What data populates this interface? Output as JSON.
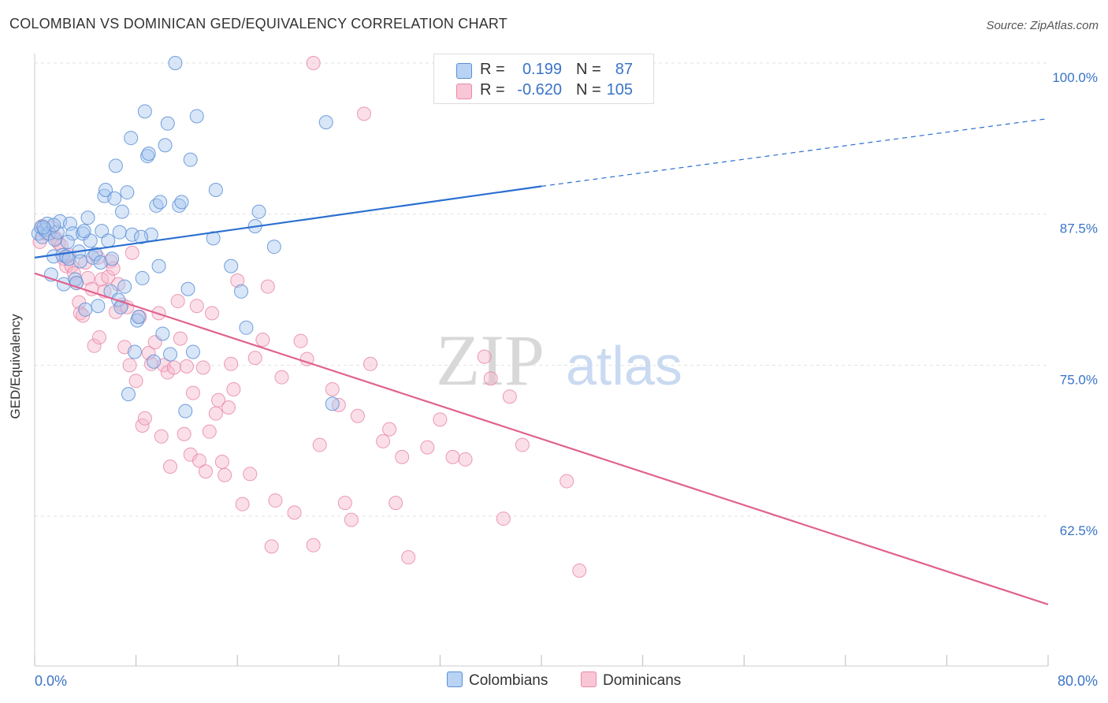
{
  "title": "COLOMBIAN VS DOMINICAN GED/EQUIVALENCY CORRELATION CHART",
  "source": "Source: ZipAtlas.com",
  "watermark": {
    "zip": "ZIP",
    "atlas": "atlas"
  },
  "legend": {
    "series1": {
      "r_label": "R =",
      "r_value": "0.199",
      "n_label": "N =",
      "n_value": "87"
    },
    "series2": {
      "r_label": "R =",
      "r_value": "-0.620",
      "n_label": "N =",
      "n_value": "105"
    }
  },
  "bottom_legend": {
    "series1": "Colombians",
    "series2": "Dominicans"
  },
  "colors": {
    "blue_fill": "#a8c8f0",
    "blue_stroke": "#5b8fd6",
    "blue_line": "#2a6fd0",
    "pink_fill": "#f6b8cc",
    "pink_stroke": "#e78aa8",
    "pink_line": "#e0628f",
    "axis_text": "#3a74c7",
    "grid": "#e2e2e2"
  },
  "chart_data": {
    "type": "scatter",
    "title": "COLOMBIAN VS DOMINICAN GED/EQUIVALENCY CORRELATION CHART",
    "xlabel": "",
    "ylabel": "GED/Equivalency",
    "xlim": [
      0,
      80
    ],
    "ylim": [
      50,
      102
    ],
    "x_tick_labels": [
      "0.0%",
      "80.0%"
    ],
    "y_ticks": [
      62.5,
      75.0,
      87.5,
      100.0
    ],
    "y_tick_labels": [
      "62.5%",
      "75.0%",
      "87.5%",
      "100.0%"
    ],
    "grid": true,
    "series": [
      {
        "name": "Colombians",
        "r": 0.199,
        "n": 87,
        "trend": {
          "x": [
            0,
            40
          ],
          "y": [
            83.9,
            89.8
          ],
          "dashed_to": [
            80,
            95.4
          ]
        },
        "points": [
          [
            0.3,
            85.9
          ],
          [
            0.5,
            86.4
          ],
          [
            0.6,
            85.6
          ],
          [
            0.8,
            86.2
          ],
          [
            1.0,
            86.7
          ],
          [
            1.1,
            85.9
          ],
          [
            1.3,
            82.5
          ],
          [
            1.5,
            84.0
          ],
          [
            1.6,
            85.4
          ],
          [
            1.8,
            86.0
          ],
          [
            2.0,
            86.9
          ],
          [
            2.2,
            84.1
          ],
          [
            2.3,
            81.7
          ],
          [
            2.5,
            84.0
          ],
          [
            2.7,
            83.8
          ],
          [
            2.8,
            86.7
          ],
          [
            3.0,
            85.9
          ],
          [
            3.2,
            82.1
          ],
          [
            3.3,
            81.8
          ],
          [
            3.5,
            84.4
          ],
          [
            3.6,
            83.6
          ],
          [
            3.8,
            85.9
          ],
          [
            4.0,
            79.6
          ],
          [
            4.2,
            87.2
          ],
          [
            4.4,
            85.3
          ],
          [
            4.6,
            83.9
          ],
          [
            4.8,
            84.2
          ],
          [
            5.0,
            79.9
          ],
          [
            5.2,
            83.5
          ],
          [
            5.3,
            86.1
          ],
          [
            5.5,
            89.0
          ],
          [
            5.6,
            89.5
          ],
          [
            5.8,
            85.3
          ],
          [
            6.0,
            81.1
          ],
          [
            6.1,
            83.8
          ],
          [
            6.3,
            88.8
          ],
          [
            6.4,
            91.5
          ],
          [
            6.6,
            80.4
          ],
          [
            6.8,
            79.8
          ],
          [
            6.9,
            87.7
          ],
          [
            7.1,
            81.5
          ],
          [
            7.3,
            89.3
          ],
          [
            7.4,
            72.6
          ],
          [
            7.6,
            93.8
          ],
          [
            7.7,
            85.8
          ],
          [
            7.9,
            76.1
          ],
          [
            8.1,
            78.7
          ],
          [
            8.2,
            79.0
          ],
          [
            8.5,
            82.2
          ],
          [
            8.7,
            96.0
          ],
          [
            8.9,
            92.3
          ],
          [
            9.0,
            92.5
          ],
          [
            9.2,
            85.8
          ],
          [
            9.4,
            75.3
          ],
          [
            9.6,
            88.2
          ],
          [
            9.8,
            83.2
          ],
          [
            9.9,
            88.5
          ],
          [
            10.1,
            77.6
          ],
          [
            10.3,
            93.2
          ],
          [
            10.5,
            95.0
          ],
          [
            10.7,
            75.9
          ],
          [
            11.1,
            100.0
          ],
          [
            11.4,
            88.2
          ],
          [
            11.6,
            88.5
          ],
          [
            11.9,
            71.2
          ],
          [
            12.1,
            81.3
          ],
          [
            12.3,
            92.0
          ],
          [
            12.5,
            76.1
          ],
          [
            12.8,
            95.6
          ],
          [
            14.1,
            85.5
          ],
          [
            14.3,
            89.5
          ],
          [
            15.5,
            83.2
          ],
          [
            16.3,
            81.1
          ],
          [
            16.7,
            78.1
          ],
          [
            17.4,
            86.5
          ],
          [
            17.7,
            87.7
          ],
          [
            18.9,
            84.8
          ],
          [
            23.0,
            95.1
          ],
          [
            23.5,
            71.8
          ],
          [
            32.5,
            100.0
          ],
          [
            39.5,
            100.0
          ],
          [
            1.5,
            86.6
          ],
          [
            2.6,
            85.2
          ],
          [
            3.9,
            86.1
          ],
          [
            0.7,
            86.4
          ],
          [
            8.4,
            85.6
          ],
          [
            6.7,
            86.0
          ]
        ]
      },
      {
        "name": "Dominicans",
        "r": -0.62,
        "n": 105,
        "trend": {
          "x": [
            0,
            80
          ],
          "y": [
            82.6,
            55.2
          ]
        },
        "points": [
          [
            0.4,
            85.2
          ],
          [
            0.6,
            86.5
          ],
          [
            0.9,
            85.9
          ],
          [
            1.2,
            85.9
          ],
          [
            1.4,
            86.4
          ],
          [
            1.7,
            85.5
          ],
          [
            1.9,
            85.1
          ],
          [
            2.1,
            84.9
          ],
          [
            2.3,
            83.8
          ],
          [
            2.5,
            83.2
          ],
          [
            2.7,
            84.1
          ],
          [
            2.9,
            83.2
          ],
          [
            3.1,
            82.6
          ],
          [
            3.3,
            81.8
          ],
          [
            3.5,
            80.2
          ],
          [
            3.6,
            79.3
          ],
          [
            3.8,
            79.1
          ],
          [
            4.0,
            83.5
          ],
          [
            4.2,
            82.2
          ],
          [
            4.5,
            81.3
          ],
          [
            4.7,
            76.6
          ],
          [
            5.0,
            83.9
          ],
          [
            5.1,
            77.3
          ],
          [
            5.3,
            82.1
          ],
          [
            5.5,
            81.1
          ],
          [
            5.8,
            82.3
          ],
          [
            6.0,
            83.6
          ],
          [
            6.2,
            83.0
          ],
          [
            6.4,
            79.4
          ],
          [
            6.6,
            81.7
          ],
          [
            6.9,
            80.0
          ],
          [
            7.1,
            76.5
          ],
          [
            7.3,
            79.8
          ],
          [
            7.5,
            75.0
          ],
          [
            7.7,
            84.3
          ],
          [
            8.0,
            73.7
          ],
          [
            8.3,
            79.0
          ],
          [
            8.5,
            70.0
          ],
          [
            8.7,
            70.6
          ],
          [
            9.0,
            76.0
          ],
          [
            9.2,
            75.1
          ],
          [
            9.5,
            76.9
          ],
          [
            9.8,
            79.3
          ],
          [
            10.0,
            69.1
          ],
          [
            10.2,
            75.0
          ],
          [
            10.5,
            74.4
          ],
          [
            10.7,
            66.6
          ],
          [
            11.0,
            74.8
          ],
          [
            11.3,
            80.3
          ],
          [
            11.5,
            77.2
          ],
          [
            11.8,
            69.3
          ],
          [
            12.0,
            74.9
          ],
          [
            12.3,
            67.6
          ],
          [
            12.5,
            72.7
          ],
          [
            12.8,
            79.9
          ],
          [
            13.0,
            67.1
          ],
          [
            13.3,
            74.8
          ],
          [
            13.5,
            66.2
          ],
          [
            13.8,
            69.5
          ],
          [
            14.0,
            79.3
          ],
          [
            14.3,
            71.0
          ],
          [
            14.5,
            72.1
          ],
          [
            14.8,
            67.0
          ],
          [
            15.0,
            65.9
          ],
          [
            15.3,
            71.5
          ],
          [
            15.5,
            75.1
          ],
          [
            15.7,
            73.0
          ],
          [
            16.0,
            82.0
          ],
          [
            16.4,
            63.5
          ],
          [
            17.0,
            66.0
          ],
          [
            17.4,
            75.6
          ],
          [
            18.0,
            77.1
          ],
          [
            18.4,
            81.5
          ],
          [
            18.7,
            60.0
          ],
          [
            19.0,
            63.8
          ],
          [
            19.5,
            74.0
          ],
          [
            20.5,
            62.8
          ],
          [
            21.0,
            77.0
          ],
          [
            21.5,
            75.5
          ],
          [
            22.0,
            60.1
          ],
          [
            22.5,
            68.4
          ],
          [
            23.5,
            73.0
          ],
          [
            24.0,
            71.7
          ],
          [
            24.5,
            63.6
          ],
          [
            25.0,
            62.2
          ],
          [
            25.5,
            70.8
          ],
          [
            26.5,
            75.1
          ],
          [
            27.5,
            68.7
          ],
          [
            28.0,
            69.7
          ],
          [
            28.5,
            63.6
          ],
          [
            29.0,
            67.4
          ],
          [
            29.5,
            59.1
          ],
          [
            31.0,
            68.2
          ],
          [
            32.0,
            70.5
          ],
          [
            33.0,
            67.4
          ],
          [
            34.0,
            67.2
          ],
          [
            35.5,
            75.7
          ],
          [
            36.0,
            73.9
          ],
          [
            37.0,
            62.3
          ],
          [
            37.5,
            72.4
          ],
          [
            38.5,
            68.4
          ],
          [
            42.0,
            65.4
          ],
          [
            43.0,
            58.0
          ],
          [
            26.0,
            95.8
          ],
          [
            22.0,
            100.0
          ]
        ]
      }
    ]
  }
}
